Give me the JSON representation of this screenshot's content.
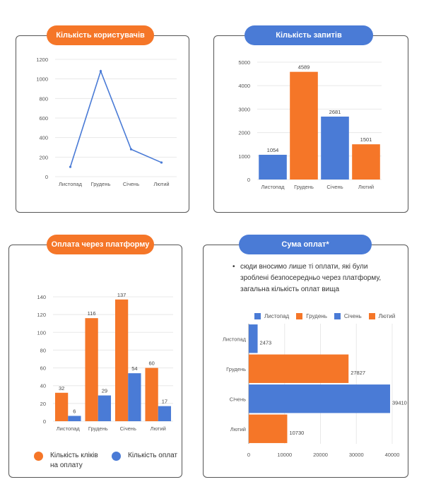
{
  "colors": {
    "orange": "#f57628",
    "blue": "#4a7bd6",
    "grid": "#e8e8e8",
    "axis": "#999999"
  },
  "panels": {
    "users": {
      "title": "Кількість користувачів"
    },
    "requests": {
      "title": "Кількість запитів"
    },
    "payments": {
      "title": "Оплата через платформу"
    },
    "sum": {
      "title": "Сума оплат*",
      "note": "сюди вносимо лише ті оплати, які були зроблені безпосередньо через платформу, загальна кількість оплат вища"
    }
  },
  "chart_data": [
    {
      "type": "line",
      "title": "Кількість користувачів",
      "categories": [
        "Листопад",
        "Грудень",
        "Січень",
        "Лютий"
      ],
      "series": [
        {
          "values": [
            100,
            1080,
            280,
            145
          ]
        }
      ],
      "ylim": [
        0,
        1200
      ],
      "yticks": [
        0,
        200,
        400,
        600,
        800,
        1000,
        1200
      ],
      "grid": true
    },
    {
      "type": "bar",
      "title": "Кількість запитів",
      "categories": [
        "Листопад",
        "Грудень",
        "Січень",
        "Лютий"
      ],
      "values": [
        1054,
        4589,
        2681,
        1501
      ],
      "bar_colors": [
        "#4a7bd6",
        "#f57628",
        "#4a7bd6",
        "#f57628"
      ],
      "ylim": [
        0,
        5000
      ],
      "yticks": [
        0,
        1000,
        2000,
        3000,
        4000,
        5000
      ],
      "grid": true
    },
    {
      "type": "bar",
      "title": "Оплата через платформу",
      "categories": [
        "Листопад",
        "Грудень",
        "Січень",
        "Лютий"
      ],
      "series": [
        {
          "name": "Кількість кліків на оплату",
          "values": [
            32,
            116,
            137,
            60
          ]
        },
        {
          "name": "Кількість оплат",
          "values": [
            6,
            29,
            54,
            17
          ]
        }
      ],
      "ylim": [
        0,
        140
      ],
      "yticks": [
        0,
        20,
        40,
        60,
        80,
        100,
        120,
        140
      ],
      "grid": true,
      "legend": "bottom"
    },
    {
      "type": "bar",
      "orientation": "horizontal",
      "title": "Сума оплат*",
      "categories": [
        "Листопад",
        "Грудень",
        "Січень",
        "Лютий"
      ],
      "values": [
        2473,
        27827,
        39410,
        10730
      ],
      "bar_colors": [
        "#4a7bd6",
        "#f57628",
        "#4a7bd6",
        "#f57628"
      ],
      "legend_entries": [
        "Листопад",
        "Грудень",
        "Січень",
        "Лютий"
      ],
      "xlim": [
        0,
        40000
      ],
      "xticks": [
        0,
        10000,
        20000,
        30000,
        40000
      ],
      "grid": true,
      "legend": "top"
    }
  ]
}
